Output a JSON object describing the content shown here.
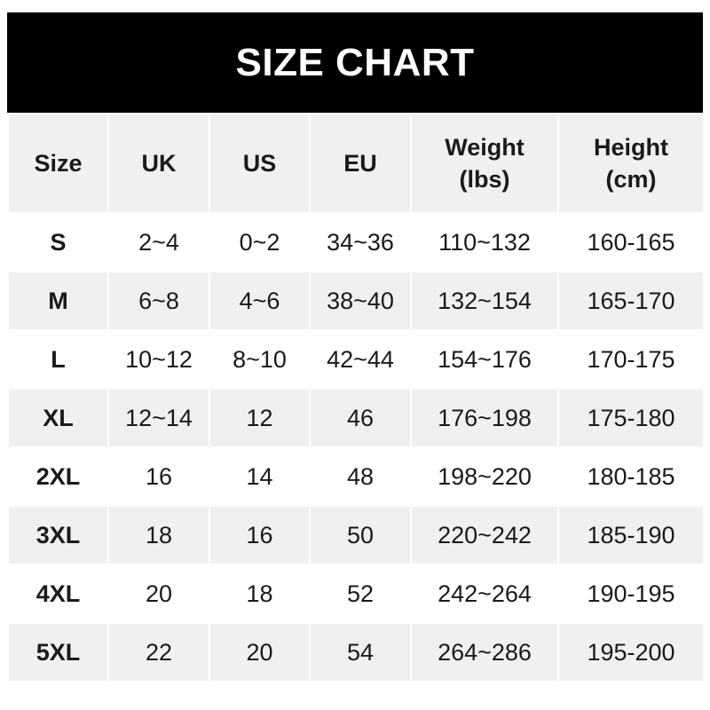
{
  "title": "SIZE CHART",
  "headers": [
    [
      "Size",
      ""
    ],
    [
      "UK",
      ""
    ],
    [
      "US",
      ""
    ],
    [
      "EU",
      ""
    ],
    [
      "Weight",
      "(lbs)"
    ],
    [
      "Height",
      "(cm)"
    ]
  ],
  "rows": [
    [
      "S",
      "2~4",
      "0~2",
      "34~36",
      "110~132",
      "160-165"
    ],
    [
      "M",
      "6~8",
      "4~6",
      "38~40",
      "132~154",
      "165-170"
    ],
    [
      "L",
      "10~12",
      "8~10",
      "42~44",
      "154~176",
      "170-175"
    ],
    [
      "XL",
      "12~14",
      "12",
      "46",
      "176~198",
      "175-180"
    ],
    [
      "2XL",
      "16",
      "14",
      "48",
      "198~220",
      "180-185"
    ],
    [
      "3XL",
      "18",
      "16",
      "50",
      "220~242",
      "185-190"
    ],
    [
      "4XL",
      "20",
      "18",
      "52",
      "242~264",
      "190-195"
    ],
    [
      "5XL",
      "22",
      "20",
      "54",
      "264~286",
      "195-200"
    ]
  ],
  "colors": {
    "header_bg": "#000000",
    "header_row_bg": "#f0f0f0",
    "stripe": "#f0f0f0"
  }
}
